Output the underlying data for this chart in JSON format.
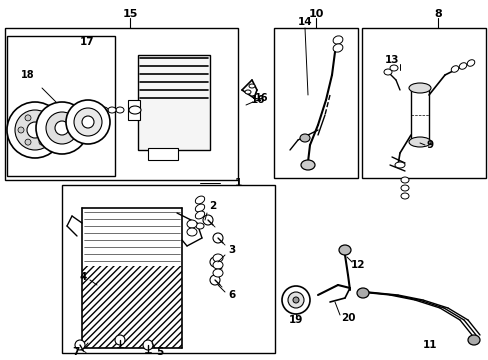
{
  "background_color": "#ffffff",
  "figsize": [
    4.89,
    3.6
  ],
  "dpi": 100,
  "boxes": {
    "compressor_outer": [
      0.04,
      1.82,
      2.3,
      1.68
    ],
    "compressor_inner": [
      0.06,
      1.9,
      1.05,
      1.52
    ],
    "condenser": [
      0.6,
      0.1,
      2.1,
      1.72
    ],
    "hose_mid": [
      2.72,
      1.52,
      0.82,
      1.98
    ],
    "drier": [
      3.58,
      1.52,
      1.28,
      1.98
    ]
  }
}
